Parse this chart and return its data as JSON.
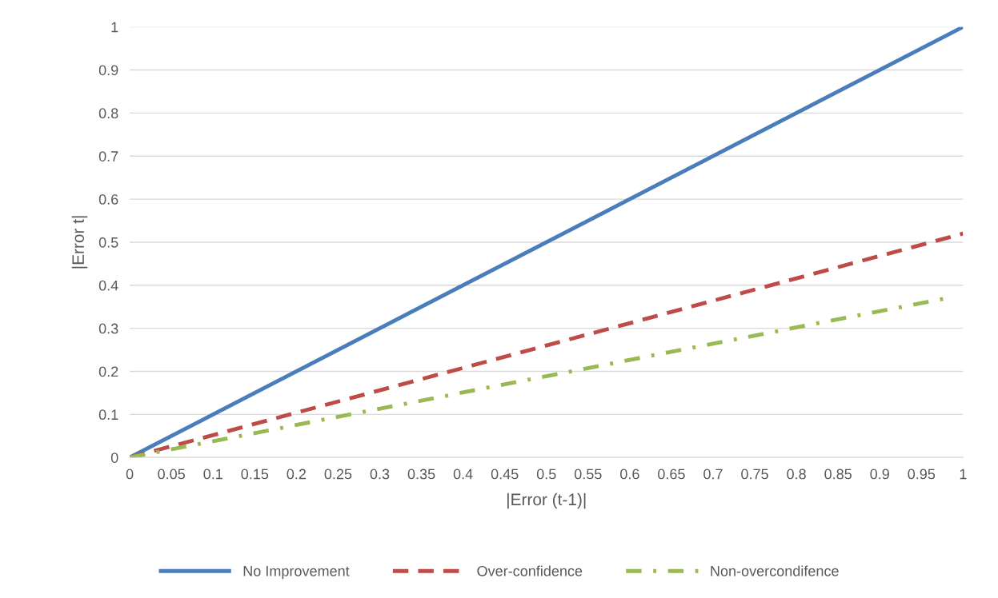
{
  "chart_data": {
    "type": "line",
    "xlabel": "|Error (t-1)|",
    "ylabel": "|Error t|",
    "xlim": [
      0,
      1
    ],
    "xticks": [
      0,
      0.05,
      0.1,
      0.15,
      0.2,
      0.25,
      0.3,
      0.35,
      0.4,
      0.45,
      0.5,
      0.55,
      0.6,
      0.65,
      0.7,
      0.75,
      0.8,
      0.85,
      0.9,
      0.95,
      1
    ],
    "ylim": [
      0,
      1
    ],
    "yticks": [
      0,
      0.1,
      0.2,
      0.3,
      0.4,
      0.5,
      0.6,
      0.7,
      0.8,
      0.9,
      1
    ],
    "grid": "y",
    "legend": "bottom",
    "series": [
      {
        "name": "No Improvement",
        "color": "#4a7ebb",
        "line_style": "solid",
        "x": [
          0,
          1
        ],
        "values": [
          0,
          1
        ]
      },
      {
        "name": "Over-confidence",
        "color": "#be4b48",
        "line_style": "dashed",
        "x": [
          0,
          1
        ],
        "values": [
          0,
          0.52
        ]
      },
      {
        "name": "Non-overcondifence",
        "color": "#98b954",
        "line_style": "dashdot",
        "x": [
          0,
          0.98
        ],
        "values": [
          0,
          0.37
        ]
      }
    ]
  }
}
